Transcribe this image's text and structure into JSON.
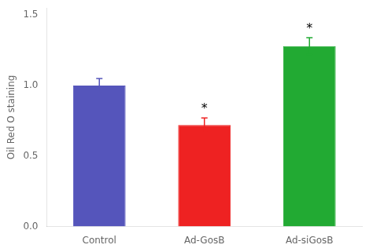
{
  "chart_data": {
    "type": "bar",
    "categories": [
      "Control",
      "Ad-GosB",
      "Ad-siGosB"
    ],
    "values": [
      1.0,
      0.72,
      1.28
    ],
    "errors": [
      0.05,
      0.05,
      0.06
    ],
    "colors": [
      "#5555bb",
      "#ee2222",
      "#22aa33"
    ],
    "ylabel": "Oil Red O staining",
    "ylim": [
      0.0,
      1.55
    ],
    "yticks": [
      {
        "value": 0.0,
        "label": "0.0"
      },
      {
        "value": 0.5,
        "label": "0.5"
      },
      {
        "value": 1.0,
        "label": "1.0"
      },
      {
        "value": 1.5,
        "label": "1.5"
      }
    ],
    "annotations": [
      {
        "category": "Ad-GosB",
        "text": "*"
      },
      {
        "category": "Ad-siGosB",
        "text": "*"
      }
    ],
    "grid": false,
    "legend": false
  }
}
